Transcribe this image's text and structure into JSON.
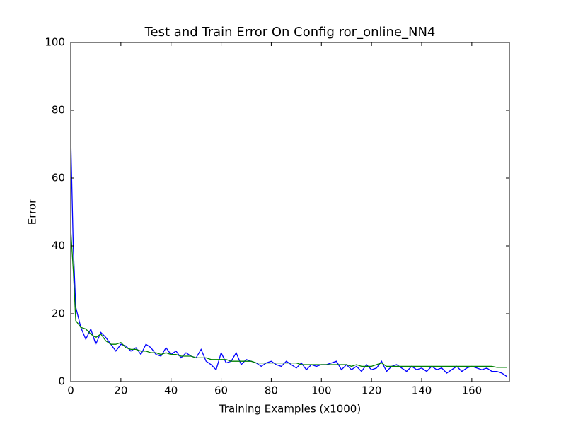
{
  "chart_data": {
    "type": "line",
    "title": "Test and Train Error On Config ror_online_NN4",
    "x_label": "Training Examples (x1000)",
    "y_label": "Error",
    "x": [
      0,
      1,
      2,
      4,
      6,
      8,
      10,
      12,
      14,
      16,
      18,
      20,
      22,
      24,
      26,
      28,
      30,
      32,
      34,
      36,
      38,
      40,
      42,
      44,
      46,
      48,
      50,
      52,
      54,
      56,
      58,
      60,
      62,
      64,
      66,
      68,
      70,
      72,
      74,
      76,
      78,
      80,
      82,
      84,
      86,
      88,
      90,
      92,
      94,
      96,
      98,
      100,
      102,
      104,
      106,
      108,
      110,
      112,
      114,
      116,
      118,
      120,
      122,
      124,
      126,
      128,
      130,
      132,
      134,
      136,
      138,
      140,
      142,
      144,
      146,
      148,
      150,
      152,
      154,
      156,
      158,
      160,
      162,
      164,
      166,
      168,
      170,
      172,
      174
    ],
    "series": [
      {
        "color": "#0000ff",
        "values": [
          72,
          40,
          22,
          16,
          12.5,
          15.5,
          11,
          14.5,
          13,
          11,
          9,
          11,
          10.5,
          9,
          10,
          8,
          11,
          10,
          8,
          7.5,
          10,
          8,
          9,
          7,
          8.5,
          7.5,
          7,
          9.5,
          6,
          5,
          3.5,
          8.5,
          5.5,
          6,
          8.5,
          5,
          6.5,
          6,
          5.5,
          4.5,
          5.5,
          6,
          5,
          4.5,
          6,
          5,
          4,
          5.5,
          3.5,
          5,
          4.5,
          5,
          5,
          5.5,
          6,
          3.5,
          5,
          3.5,
          4.5,
          3,
          5,
          3.5,
          4,
          6,
          3,
          4.5,
          5,
          4,
          3,
          4.5,
          3.5,
          4,
          3,
          4.5,
          3.5,
          4,
          2.5,
          3.5,
          4.5,
          3,
          4,
          4.5,
          4,
          3.5,
          4,
          3,
          3,
          2.5,
          1.5
        ]
      },
      {
        "color": "#008000",
        "values": [
          45,
          33,
          18,
          16,
          15.5,
          14,
          13,
          14,
          12,
          11,
          11,
          11.5,
          10,
          9.5,
          9.5,
          9,
          9,
          8.5,
          8.5,
          8,
          8.5,
          8,
          8,
          7.5,
          7.5,
          7.5,
          7,
          7,
          7,
          6.5,
          6.5,
          6.5,
          6.5,
          6,
          6,
          6,
          6,
          6,
          5.5,
          5.5,
          5.5,
          5.5,
          5.5,
          5.5,
          5.5,
          5.5,
          5.5,
          5,
          5,
          5,
          5,
          5,
          5,
          5,
          5,
          5,
          5,
          4.5,
          5,
          4.5,
          4.5,
          4.5,
          5,
          5.5,
          4.5,
          4.5,
          4.5,
          4.5,
          4.5,
          4.5,
          4.5,
          4.5,
          4.5,
          4.5,
          4.5,
          4.5,
          4.5,
          4.5,
          4.5,
          4.5,
          4.5,
          4.5,
          4.5,
          4.5,
          4.5,
          4.5,
          4.2,
          4.2,
          4.2
        ]
      }
    ],
    "xlim": [
      0,
      175
    ],
    "ylim": [
      0,
      100
    ],
    "xticks": [
      0,
      20,
      40,
      60,
      80,
      100,
      120,
      140,
      160
    ],
    "yticks": [
      0,
      20,
      40,
      60,
      80,
      100
    ],
    "grid": false
  }
}
